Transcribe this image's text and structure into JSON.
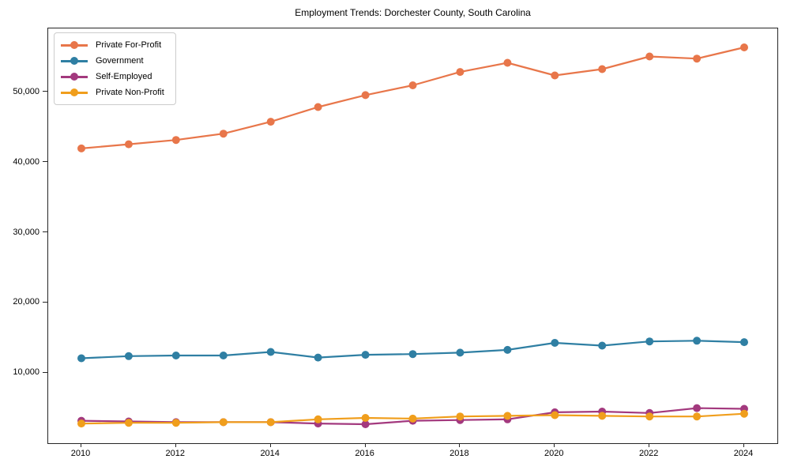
{
  "chart_data": {
    "type": "line",
    "title": "Employment Trends: Dorchester County, South Carolina",
    "xlabel": "",
    "ylabel": "",
    "grid": false,
    "legend_position": "upper left",
    "marker": "circle",
    "xlim": [
      2009.3,
      2024.7
    ],
    "ylim": [
      0,
      59100
    ],
    "x": [
      2010,
      2011,
      2012,
      2013,
      2014,
      2015,
      2016,
      2017,
      2018,
      2019,
      2020,
      2021,
      2022,
      2023,
      2024
    ],
    "series": [
      {
        "name": "Private For-Profit",
        "color": "#e8764a",
        "values": [
          42000,
          42600,
          43200,
          44100,
          45800,
          47900,
          49600,
          51000,
          52900,
          54200,
          52400,
          53300,
          55100,
          54800,
          56400
        ]
      },
      {
        "name": "Government",
        "color": "#2f7fa3",
        "values": [
          12100,
          12400,
          12500,
          12500,
          13000,
          12200,
          12600,
          12700,
          12900,
          13300,
          14300,
          13900,
          14500,
          14600,
          14400
        ]
      },
      {
        "name": "Self-Employed",
        "color": "#a3397e",
        "values": [
          3200,
          3100,
          3000,
          3000,
          3000,
          2800,
          2700,
          3200,
          3300,
          3400,
          4400,
          4500,
          4300,
          5000,
          4900
        ]
      },
      {
        "name": "Private Non-Profit",
        "color": "#f09e1c",
        "values": [
          2800,
          2900,
          2900,
          3000,
          3000,
          3400,
          3600,
          3500,
          3800,
          3900,
          4000,
          3900,
          3800,
          3800,
          4200
        ]
      }
    ],
    "yticks": [
      {
        "value": 10000,
        "label": "10,000"
      },
      {
        "value": 20000,
        "label": "20,000"
      },
      {
        "value": 30000,
        "label": "30,000"
      },
      {
        "value": 40000,
        "label": "40,000"
      },
      {
        "value": 50000,
        "label": "50,000"
      }
    ],
    "xticks": [
      {
        "value": 2010,
        "label": "2010"
      },
      {
        "value": 2012,
        "label": "2012"
      },
      {
        "value": 2014,
        "label": "2014"
      },
      {
        "value": 2016,
        "label": "2016"
      },
      {
        "value": 2018,
        "label": "2018"
      },
      {
        "value": 2020,
        "label": "2020"
      },
      {
        "value": 2022,
        "label": "2022"
      },
      {
        "value": 2024,
        "label": "2024"
      }
    ],
    "axis_color": "#262626",
    "text_color": "#000000",
    "background_color": "#ffffff"
  }
}
